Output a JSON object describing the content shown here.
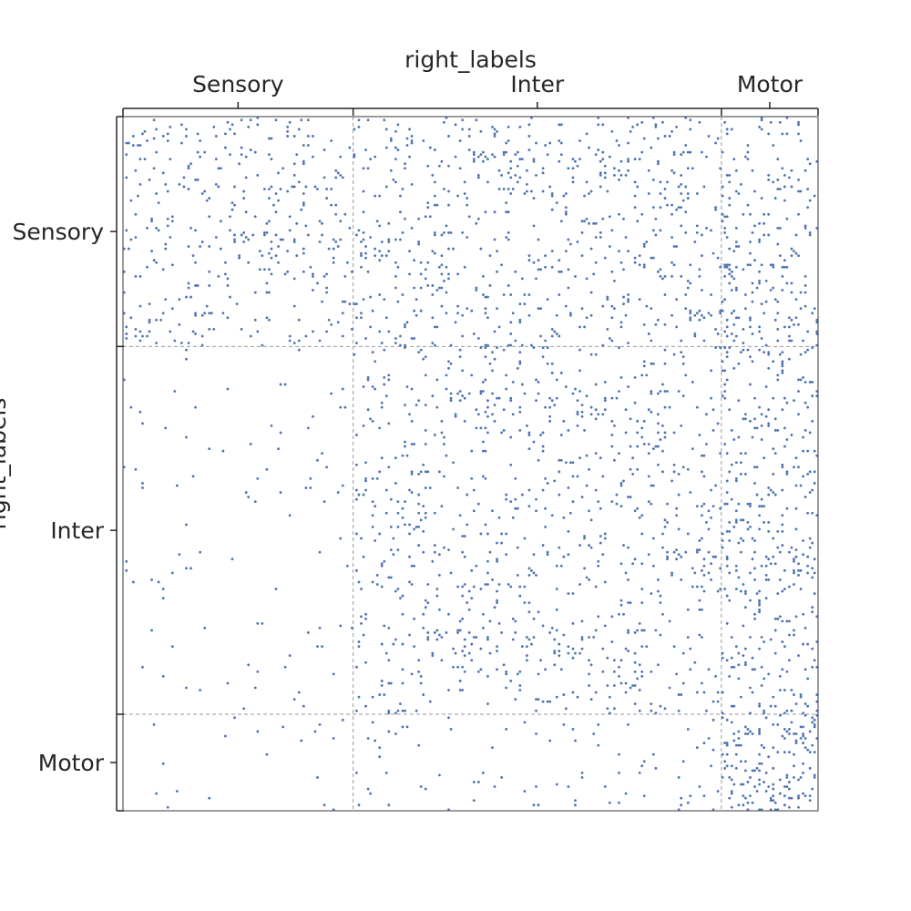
{
  "chart_data": {
    "type": "scatter",
    "title": "",
    "xlabel": "right_labels",
    "ylabel": "right_labels",
    "groups": [
      {
        "name": "Sensory",
        "size": 100
      },
      {
        "name": "Inter",
        "size": 160
      },
      {
        "name": "Motor",
        "size": 42
      }
    ],
    "n_nodes": 302,
    "xlim": [
      0,
      302
    ],
    "ylim": [
      0,
      302
    ],
    "marker_color": "#4c72b0",
    "divider_color": "#9a9a9a",
    "block_density": [
      [
        0.03,
        0.035,
        0.045
      ],
      [
        0.006,
        0.03,
        0.05
      ],
      [
        0.004,
        0.012,
        0.08
      ]
    ],
    "grid": false,
    "legend": "none"
  }
}
